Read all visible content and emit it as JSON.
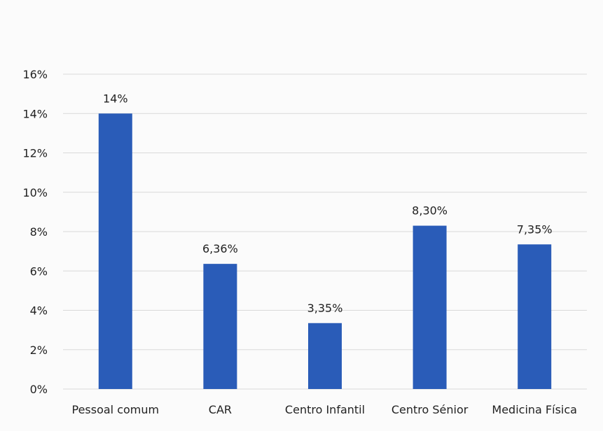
{
  "chart_data": {
    "type": "bar",
    "title": "",
    "xlabel": "",
    "ylabel": "",
    "categories": [
      "Pessoal comum",
      "CAR",
      "Centro Infantil",
      "Centro Sénior",
      "Medicina Física"
    ],
    "values": [
      14,
      6.36,
      3.35,
      8.3,
      7.35
    ],
    "data_labels": [
      "14%",
      "6,36%",
      "3,35%",
      "8,30%",
      "7,35%"
    ],
    "ylim": [
      0,
      16
    ],
    "yticks": [
      0,
      2,
      4,
      6,
      8,
      10,
      12,
      14,
      16
    ],
    "ytick_labels": [
      "0%",
      "2%",
      "4%",
      "6%",
      "8%",
      "10%",
      "12%",
      "14%",
      "16%"
    ],
    "grid": true,
    "legend": "none",
    "bar_color": "#2a5cb8",
    "grid_color": "#d9d9d9"
  }
}
